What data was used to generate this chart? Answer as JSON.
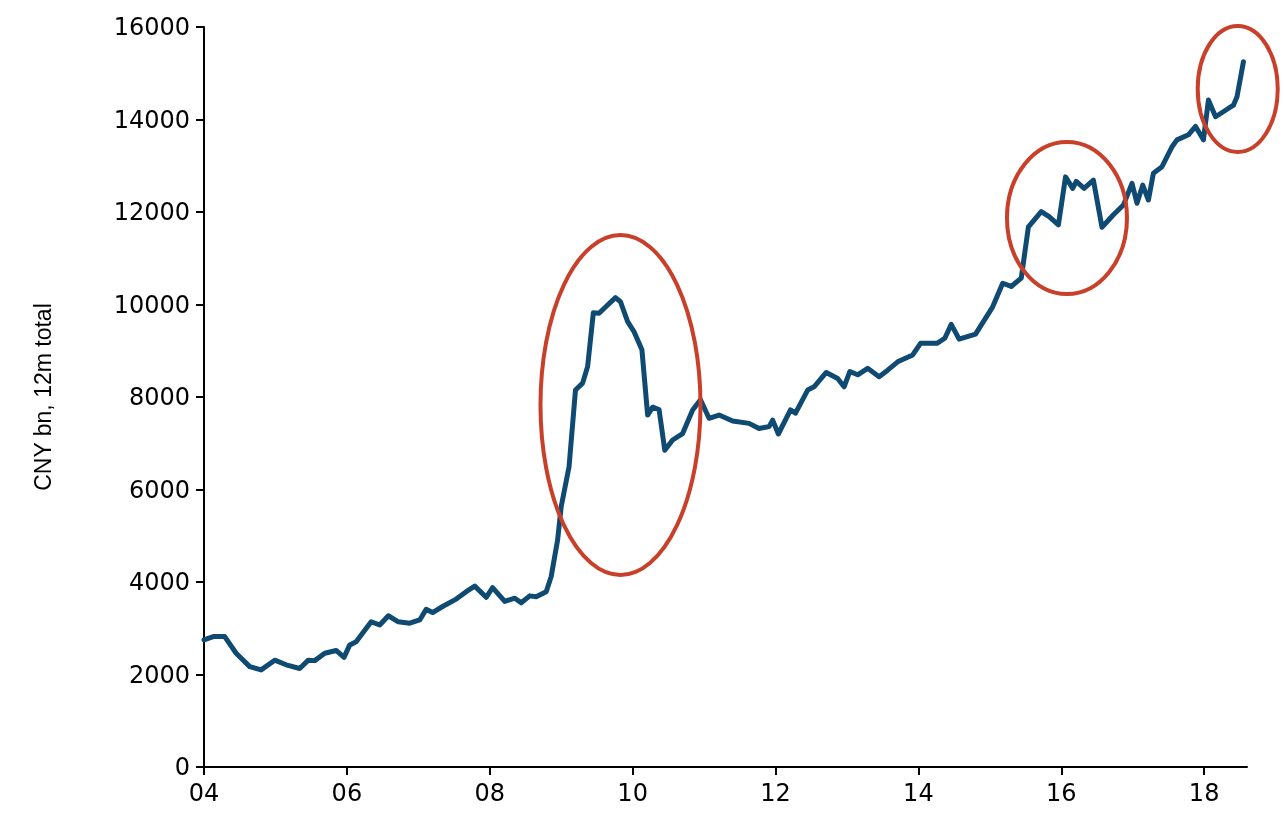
{
  "chart_data": {
    "type": "line",
    "ylabel": "CNY bn, 12m total",
    "xlim": [
      2004,
      2018.6
    ],
    "xticks": [
      {
        "value": 2004,
        "label": "04"
      },
      {
        "value": 2006,
        "label": "06"
      },
      {
        "value": 2008,
        "label": "08"
      },
      {
        "value": 2010,
        "label": "10"
      },
      {
        "value": 2012,
        "label": "12"
      },
      {
        "value": 2014,
        "label": "14"
      },
      {
        "value": 2016,
        "label": "16"
      },
      {
        "value": 2018,
        "label": "18"
      }
    ],
    "ylim": [
      0,
      16000
    ],
    "yticks": [
      0,
      2000,
      4000,
      6000,
      8000,
      10000,
      12000,
      14000,
      16000
    ],
    "grid": false,
    "marker": "none",
    "line_style": "solid",
    "series": [
      {
        "color": "#0e4a72",
        "x": [
          2004.0,
          2004.13,
          2004.29,
          2004.45,
          2004.64,
          2004.8,
          2004.99,
          2005.15,
          2005.34,
          2005.46,
          2005.55,
          2005.69,
          2005.85,
          2005.96,
          2006.04,
          2006.13,
          2006.34,
          2006.46,
          2006.58,
          2006.72,
          2006.88,
          2007.02,
          2007.11,
          2007.2,
          2007.34,
          2007.53,
          2007.67,
          2007.79,
          2007.95,
          2008.04,
          2008.21,
          2008.35,
          2008.44,
          2008.56,
          2008.65,
          2008.79,
          2008.86,
          2008.95,
          2009.0,
          2009.11,
          2009.2,
          2009.3,
          2009.37,
          2009.45,
          2009.53,
          2009.65,
          2009.76,
          2009.83,
          2009.93,
          2010.02,
          2010.13,
          2010.21,
          2010.28,
          2010.37,
          2010.45,
          2010.56,
          2010.7,
          2010.84,
          2010.95,
          2011.07,
          2011.21,
          2011.4,
          2011.63,
          2011.77,
          2011.91,
          2011.96,
          2012.04,
          2012.21,
          2012.28,
          2012.45,
          2012.54,
          2012.71,
          2012.87,
          2012.96,
          2013.04,
          2013.15,
          2013.29,
          2013.45,
          2013.57,
          2013.71,
          2013.92,
          2014.03,
          2014.26,
          2014.37,
          2014.46,
          2014.57,
          2014.8,
          2015.04,
          2015.18,
          2015.3,
          2015.44,
          2015.54,
          2015.72,
          2015.83,
          2015.96,
          2016.06,
          2016.16,
          2016.21,
          2016.32,
          2016.45,
          2016.57,
          2016.73,
          2016.87,
          2016.99,
          2017.06,
          2017.14,
          2017.22,
          2017.29,
          2017.41,
          2017.55,
          2017.62,
          2017.78,
          2017.88,
          2017.99,
          2018.06,
          2018.16,
          2018.3,
          2018.41,
          2018.46,
          2018.55
        ],
        "values": [
          2750,
          2820,
          2820,
          2460,
          2170,
          2100,
          2310,
          2210,
          2130,
          2310,
          2300,
          2460,
          2520,
          2370,
          2640,
          2710,
          3140,
          3070,
          3270,
          3140,
          3110,
          3180,
          3410,
          3340,
          3470,
          3630,
          3790,
          3910,
          3670,
          3880,
          3580,
          3650,
          3550,
          3700,
          3680,
          3790,
          4120,
          4910,
          5630,
          6490,
          8150,
          8300,
          8660,
          9820,
          9810,
          9990,
          10150,
          10060,
          9630,
          9410,
          9020,
          7610,
          7780,
          7730,
          6850,
          7070,
          7210,
          7720,
          7940,
          7540,
          7610,
          7480,
          7430,
          7320,
          7360,
          7500,
          7200,
          7720,
          7650,
          8150,
          8220,
          8530,
          8400,
          8220,
          8550,
          8480,
          8620,
          8440,
          8580,
          8760,
          8910,
          9160,
          9160,
          9270,
          9570,
          9250,
          9360,
          9950,
          10460,
          10390,
          10570,
          11680,
          12010,
          11900,
          11720,
          12760,
          12510,
          12660,
          12510,
          12690,
          11670,
          11940,
          12150,
          12620,
          12190,
          12580,
          12260,
          12840,
          12980,
          13410,
          13560,
          13670,
          13850,
          13560,
          14420,
          14060,
          14200,
          14310,
          14490,
          15250
        ]
      }
    ]
  }
}
